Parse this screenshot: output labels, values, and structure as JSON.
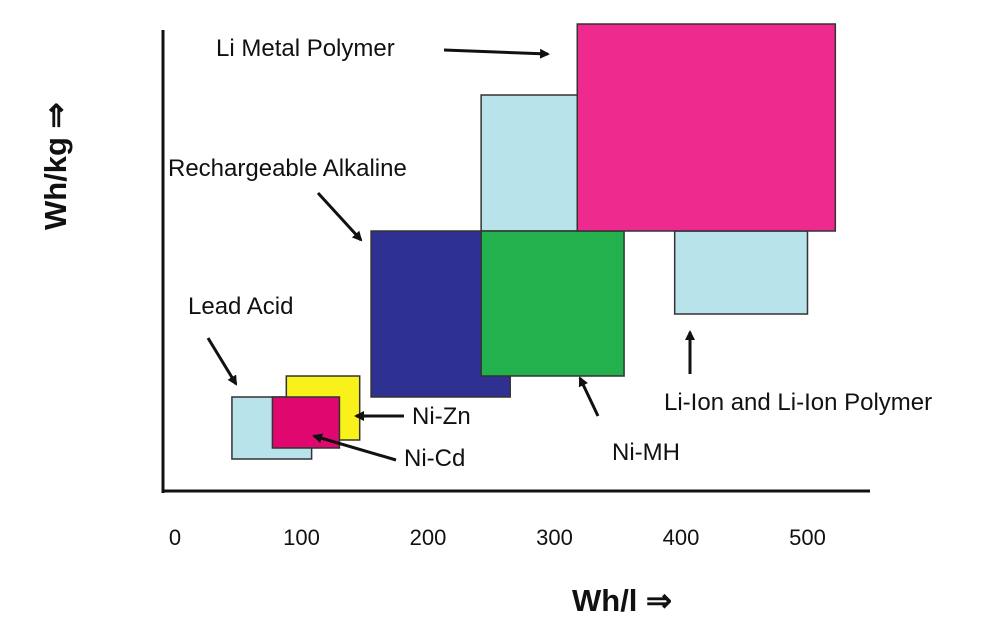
{
  "chart_data": {
    "type": "range-box",
    "xlabel": "Wh/l ⇒",
    "ylabel": "Wh/kg ⇒",
    "xticks": [
      "0",
      "100",
      "200",
      "300",
      "400",
      "500"
    ],
    "xlim": [
      0,
      550
    ],
    "grid": false,
    "boxes": [
      {
        "label": "Lead Acid",
        "x": [
          45,
          108
        ],
        "color": "#b9e3ea"
      },
      {
        "label": "Ni-Zn",
        "x": [
          88,
          146
        ],
        "color": "#f8f21a"
      },
      {
        "label": "Ni-Cd",
        "x": [
          77,
          130
        ],
        "color": "#e0086e"
      },
      {
        "label": "Rechargeable Alkaline",
        "x": [
          155,
          265
        ],
        "color": "#2e3192"
      },
      {
        "label": "Li-Ion and Li-Ion Polymer",
        "x": [
          395,
          500
        ],
        "color": "#b9e3ea"
      },
      {
        "label": "Li-Ion and Li-Ion Polymer",
        "x": [
          242,
          318
        ],
        "color": "#b9e3ea"
      },
      {
        "label": "Ni-MH",
        "x": [
          242,
          355
        ],
        "color": "#22b14c"
      },
      {
        "label": "Li Metal Polymer",
        "x": [
          318,
          522
        ],
        "color": "#ee2a8f"
      }
    ]
  },
  "labels": {
    "li_metal_polymer": "Li Metal Polymer",
    "rechargeable_alkaline": "Rechargeable Alkaline",
    "lead_acid": "Lead Acid",
    "ni_zn": "Ni-Zn",
    "ni_cd": "Ni-Cd",
    "ni_mh": "Ni-MH",
    "li_ion": "Li-Ion and Li-Ion Polymer"
  }
}
